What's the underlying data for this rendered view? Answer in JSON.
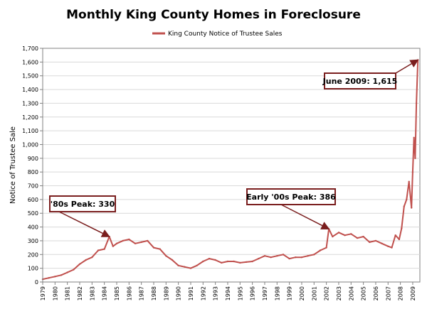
{
  "chart_data": {
    "type": "line",
    "title": "Monthly King County Homes in Foreclosure",
    "ylabel": "Notice of Trustee Sale",
    "xlabel": "",
    "ylim": [
      0,
      1700
    ],
    "yticks": [
      0,
      100,
      200,
      300,
      400,
      500,
      600,
      700,
      800,
      900,
      1000,
      1100,
      1200,
      1300,
      1400,
      1500,
      1600,
      1700
    ],
    "xlim": [
      1979,
      2009.58
    ],
    "xticks": [
      "1979",
      "1980",
      "1981",
      "1982",
      "1983",
      "1984",
      "1985",
      "1986",
      "1987",
      "1988",
      "1989",
      "1990",
      "1991",
      "1992",
      "1993",
      "1994",
      "1995",
      "1996",
      "1997",
      "1998",
      "1999",
      "2000",
      "2001",
      "2002",
      "2003",
      "2004",
      "2005",
      "2006",
      "2007",
      "2008",
      "2009"
    ],
    "grid": true,
    "legend_position": "top",
    "series": [
      {
        "name": "King County Notice of Trustee Sales",
        "color": "#c0504d",
        "x": [
          1979.0,
          1979.5,
          1980.0,
          1980.5,
          1981.0,
          1981.5,
          1982.0,
          1982.5,
          1983.0,
          1983.5,
          1984.0,
          1984.4,
          1984.7,
          1985.0,
          1985.5,
          1986.0,
          1986.5,
          1987.0,
          1987.5,
          1988.0,
          1988.5,
          1989.0,
          1989.5,
          1990.0,
          1990.5,
          1991.0,
          1991.5,
          1992.0,
          1992.5,
          1993.0,
          1993.5,
          1994.0,
          1994.5,
          1995.0,
          1995.5,
          1996.0,
          1996.5,
          1997.0,
          1997.5,
          1998.0,
          1998.5,
          1999.0,
          1999.5,
          2000.0,
          2000.5,
          2001.0,
          2001.5,
          2002.0,
          2002.2,
          2002.5,
          2003.0,
          2003.5,
          2004.0,
          2004.5,
          2005.0,
          2005.5,
          2006.0,
          2006.5,
          2007.0,
          2007.3,
          2007.6,
          2007.9,
          2008.1,
          2008.3,
          2008.5,
          2008.7,
          2008.9,
          2009.0,
          2009.1,
          2009.2,
          2009.3,
          2009.42
        ],
        "y": [
          20,
          30,
          40,
          50,
          70,
          90,
          130,
          160,
          180,
          230,
          240,
          330,
          260,
          280,
          300,
          310,
          280,
          290,
          300,
          250,
          240,
          190,
          160,
          120,
          110,
          100,
          120,
          150,
          170,
          160,
          140,
          150,
          150,
          140,
          145,
          150,
          170,
          190,
          180,
          190,
          200,
          170,
          180,
          180,
          190,
          200,
          230,
          250,
          386,
          330,
          360,
          340,
          350,
          320,
          330,
          290,
          300,
          280,
          260,
          250,
          340,
          310,
          390,
          550,
          600,
          730,
          540,
          800,
          1050,
          900,
          1300,
          1615
        ]
      }
    ],
    "annotations": [
      {
        "text": "'80s Peak: 330",
        "x": 1984.4,
        "y": 330
      },
      {
        "text": "Early '00s Peak: 386",
        "x": 2002.2,
        "y": 386
      },
      {
        "text": "June 2009: 1,615",
        "x": 2009.42,
        "y": 1615
      }
    ]
  }
}
